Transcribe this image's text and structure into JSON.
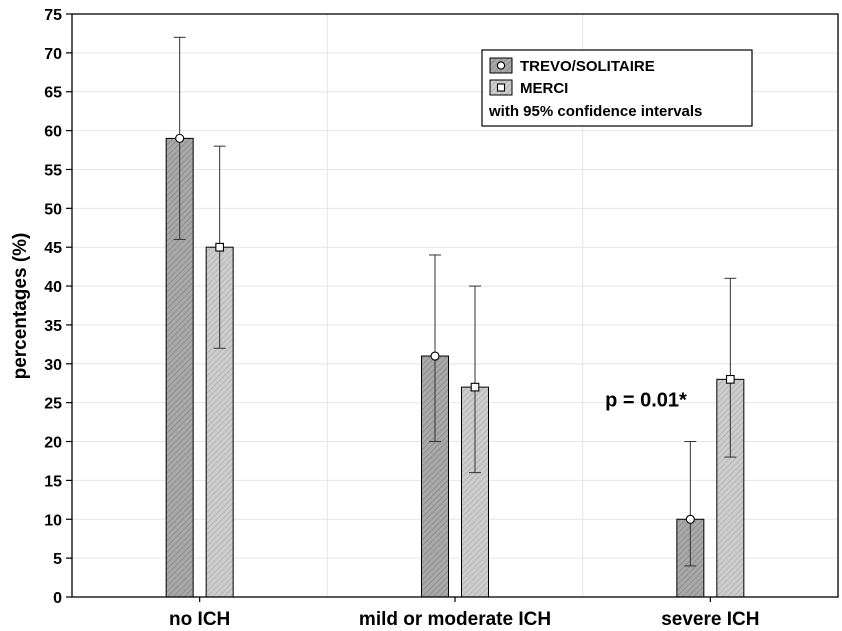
{
  "chart_data": {
    "type": "bar",
    "categories": [
      "no ICH",
      "mild or moderate ICH",
      "severe ICH"
    ],
    "series": [
      {
        "name": "TREVO/SOLITAIRE",
        "values": [
          59,
          31,
          10
        ],
        "ci_low": [
          46,
          20,
          4
        ],
        "ci_high": [
          72,
          44,
          20
        ],
        "marker": "circle",
        "color": "#a9a9a9"
      },
      {
        "name": "MERCI",
        "values": [
          45,
          27,
          28
        ],
        "ci_low": [
          32,
          16,
          18
        ],
        "ci_high": [
          58,
          40,
          41
        ],
        "marker": "square",
        "color": "#cdcdcd"
      }
    ],
    "legend_note": "with 95% confidence intervals",
    "ylabel": "percentages (%)",
    "xlabel": "",
    "ylim": [
      0,
      75
    ],
    "yticks": [
      0,
      5,
      10,
      15,
      20,
      25,
      30,
      35,
      40,
      45,
      50,
      55,
      60,
      65,
      70,
      75
    ],
    "grid": true,
    "legend_position": "top-right",
    "annotation": {
      "text": "p = 0.01*",
      "category": "severe ICH"
    }
  }
}
